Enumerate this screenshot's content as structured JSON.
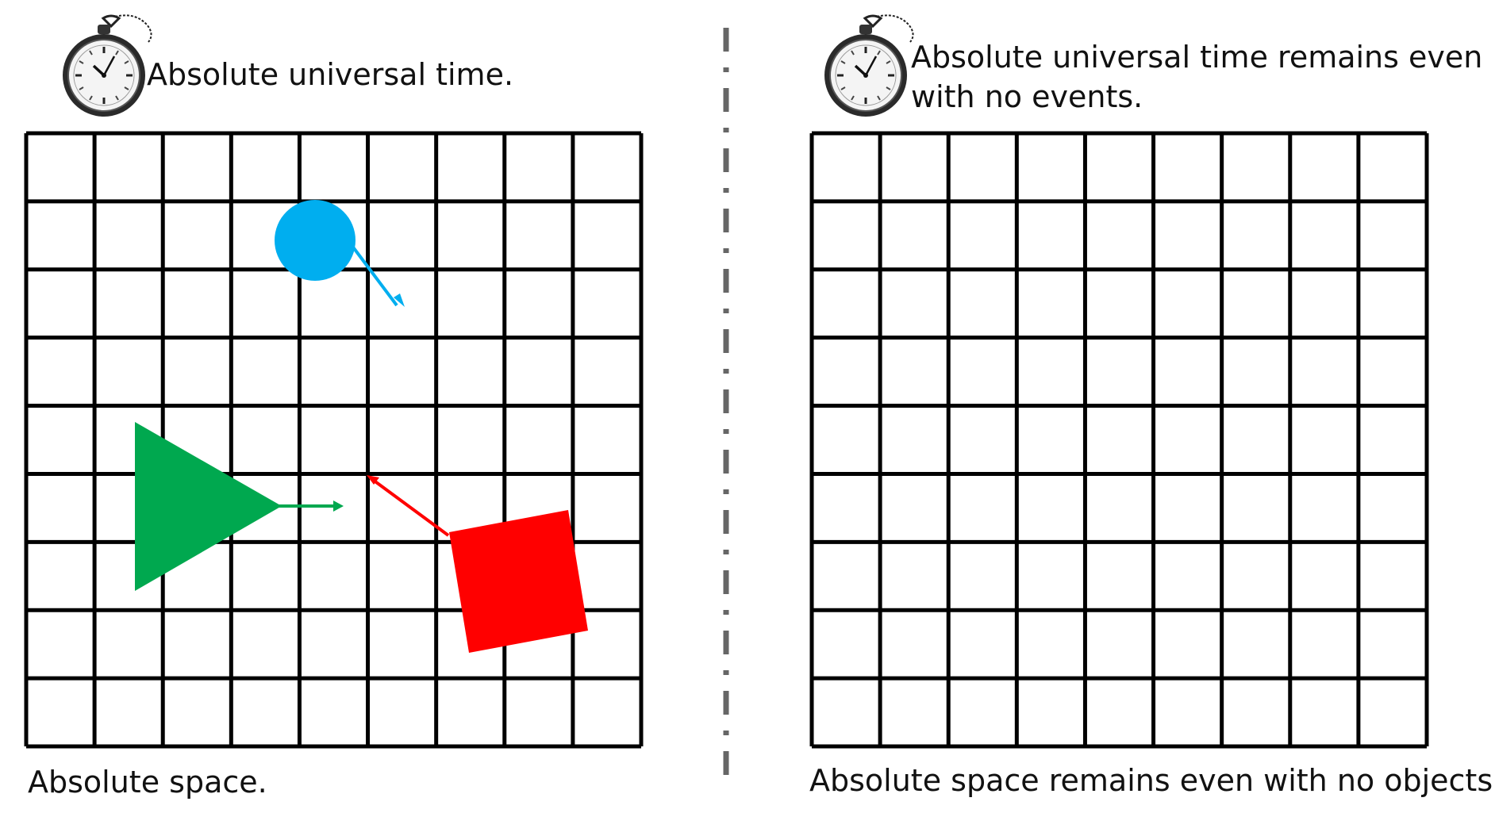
{
  "left_panel": {
    "time_caption": "Absolute universal time.",
    "space_caption": "Absolute space.",
    "grid": {
      "rows": 9,
      "cols": 9
    },
    "objects": [
      {
        "shape": "circle",
        "color": "#00aeef",
        "arrow_color": "#00aeef"
      },
      {
        "shape": "triangle",
        "color": "#00a84f",
        "arrow_color": "#00a84f"
      },
      {
        "shape": "square",
        "color": "#ff0000",
        "arrow_color": "#ff0000"
      }
    ]
  },
  "right_panel": {
    "time_caption_line1": "Absolute universal time remains even",
    "time_caption_line2": "with no events.",
    "space_caption": "Absolute space remains even with no objects.",
    "grid": {
      "rows": 9,
      "cols": 9
    }
  },
  "icons": {
    "watch": "pocket-watch-icon"
  },
  "colors": {
    "grid_line": "#000000",
    "divider": "#666666"
  }
}
